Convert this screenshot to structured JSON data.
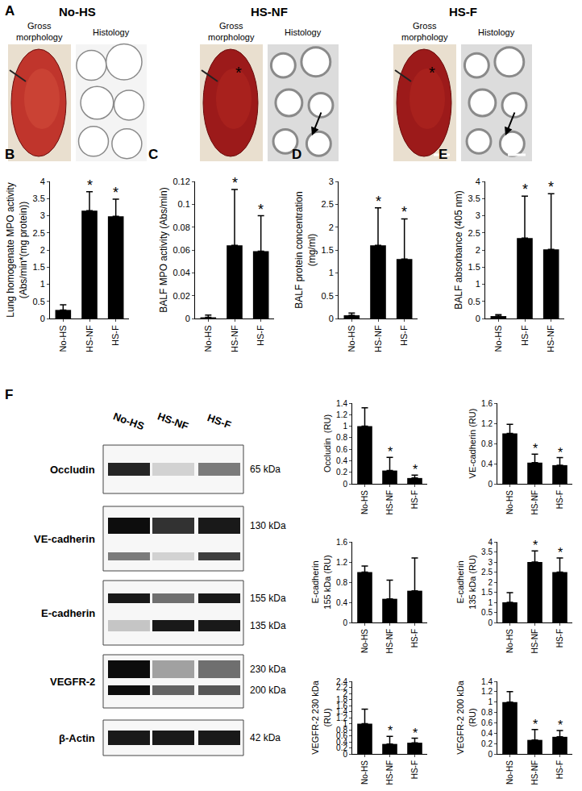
{
  "panel_a": {
    "label": "A",
    "groups": [
      {
        "title": "No-HS",
        "gross": "Gross\nmorphology",
        "histology": "Histology"
      },
      {
        "title": "HS-NF",
        "gross": "Gross\nmorphology",
        "histology": "Histology",
        "gross_mark": "*"
      },
      {
        "title": "HS-F",
        "gross": "Gross\nmorphology",
        "histology": "Histology",
        "gross_mark": "*"
      }
    ]
  },
  "western_blot": {
    "label": "F",
    "lanes": [
      "No-HS",
      "HS-NF",
      "HS-F"
    ],
    "rows": [
      {
        "name": "Occludin",
        "bands": [
          "65 kDa"
        ]
      },
      {
        "name": "VE-cadherin",
        "bands": [
          "130 kDa"
        ]
      },
      {
        "name": "E-cadherin",
        "bands": [
          "155 kDa",
          "135 kDa"
        ]
      },
      {
        "name": "VEGFR-2",
        "bands": [
          "230 kDa",
          "200 kDa"
        ]
      },
      {
        "name": "β-Actin",
        "bands": [
          "42 kDa"
        ]
      }
    ]
  },
  "chart_data": [
    {
      "type": "bar",
      "panel_label": "B",
      "ylabel": "Lung homogenate MPO activity\n(Abs/min*(mg protein))",
      "categories": [
        "No-HS",
        "HS-NF",
        "HS-F"
      ],
      "values": [
        0.25,
        3.15,
        2.98
      ],
      "errors": [
        0.15,
        0.55,
        0.5
      ],
      "color": "#000000",
      "ylim": [
        0,
        4
      ],
      "yticks": [
        0,
        0.5,
        1,
        1.5,
        2,
        2.5,
        3,
        3.5,
        4
      ],
      "grid": false,
      "annotations": [
        {
          "category": "HS-NF",
          "text": "*"
        },
        {
          "category": "HS-F",
          "text": "*"
        }
      ]
    },
    {
      "type": "bar",
      "panel_label": "C",
      "ylabel": "BALF MPO activity (Abs/min)",
      "categories": [
        "No-HS",
        "HS-NF",
        "HS-F"
      ],
      "values": [
        0.001,
        0.064,
        0.059
      ],
      "errors": [
        0.002,
        0.049,
        0.031
      ],
      "color": "#000000",
      "ylim": [
        0,
        0.12
      ],
      "yticks": [
        0,
        0.02,
        0.04,
        0.06,
        0.08,
        0.1,
        0.12
      ],
      "grid": false,
      "annotations": [
        {
          "category": "HS-NF",
          "text": "*"
        },
        {
          "category": "HS-F",
          "text": "*"
        }
      ]
    },
    {
      "type": "bar",
      "panel_label": "D",
      "ylabel": "BALF protein concentration\n(mg/ml)",
      "categories": [
        "No-HS",
        "HS-NF",
        "HS-F"
      ],
      "values": [
        0.07,
        1.6,
        1.3
      ],
      "errors": [
        0.05,
        0.82,
        0.88
      ],
      "color": "#000000",
      "ylim": [
        0,
        3
      ],
      "yticks": [
        0,
        0.5,
        1,
        1.5,
        2,
        2.5,
        3
      ],
      "grid": false,
      "annotations": [
        {
          "category": "HS-NF",
          "text": "*"
        },
        {
          "category": "HS-F",
          "text": "*"
        }
      ]
    },
    {
      "type": "bar",
      "panel_label": "E",
      "ylabel": "BALF absorbance (405 nm)",
      "categories": [
        "No-HS",
        "HS-F",
        "HS-NF"
      ],
      "values": [
        0.07,
        2.35,
        2.02
      ],
      "errors": [
        0.04,
        1.22,
        1.62
      ],
      "color": "#000000",
      "ylim": [
        0,
        4
      ],
      "yticks": [
        0,
        0.5,
        1,
        1.5,
        2,
        2.5,
        3,
        3.5,
        4
      ],
      "grid": false,
      "annotations": [
        {
          "category": "HS-F",
          "text": "*"
        },
        {
          "category": "HS-NF",
          "text": "*"
        }
      ]
    },
    {
      "type": "bar",
      "ylabel": "Occludin  (RU)",
      "categories": [
        "No-HS",
        "HS-NF",
        "HS-F"
      ],
      "values": [
        1.0,
        0.23,
        0.1
      ],
      "errors": [
        0.32,
        0.23,
        0.05
      ],
      "color": "#000000",
      "ylim": [
        0,
        1.4
      ],
      "yticks": [
        0,
        0.2,
        0.4,
        0.6,
        0.8,
        1,
        1.2,
        1.4
      ],
      "grid": false,
      "annotations": [
        {
          "category": "HS-NF",
          "text": "*"
        },
        {
          "category": "HS-F",
          "text": "*"
        }
      ]
    },
    {
      "type": "bar",
      "ylabel": "VE-cadherin (RU)",
      "categories": [
        "No-HS",
        "HS-NF",
        "HS-F"
      ],
      "values": [
        1.0,
        0.42,
        0.37
      ],
      "errors": [
        0.18,
        0.17,
        0.15
      ],
      "color": "#000000",
      "ylim": [
        0,
        1.6
      ],
      "yticks": [
        0,
        0.4,
        0.8,
        1.2,
        1.6
      ],
      "grid": false,
      "annotations": [
        {
          "category": "HS-NF",
          "text": "*"
        },
        {
          "category": "HS-F",
          "text": "*"
        }
      ]
    },
    {
      "type": "bar",
      "ylabel": "E-cadherin\n155 kDa (RU)",
      "categories": [
        "No-HS",
        "HS-NF",
        "HS-F"
      ],
      "values": [
        1.0,
        0.47,
        0.63
      ],
      "errors": [
        0.12,
        0.37,
        0.65
      ],
      "color": "#000000",
      "ylim": [
        0,
        1.6
      ],
      "yticks": [
        0,
        0.4,
        0.8,
        1.2,
        1.6
      ],
      "grid": false
    },
    {
      "type": "bar",
      "ylabel": "E-cadherin\n135 kDa (RU)",
      "categories": [
        "No-HS",
        "HS-NF",
        "HS-F"
      ],
      "values": [
        1.0,
        3.0,
        2.5
      ],
      "errors": [
        0.48,
        0.55,
        0.7
      ],
      "color": "#000000",
      "ylim": [
        0,
        4
      ],
      "yticks": [
        0,
        0.5,
        1,
        1.5,
        2,
        2.5,
        3,
        3.5,
        4
      ],
      "grid": false,
      "annotations": [
        {
          "category": "HS-NF",
          "text": "*"
        },
        {
          "category": "HS-F",
          "text": "*"
        }
      ]
    },
    {
      "type": "bar",
      "ylabel": "VEGFR-2 230 kDa\n(RU)",
      "categories": [
        "No-HS",
        "HS-NF",
        "HS-F"
      ],
      "values": [
        1.0,
        0.33,
        0.37
      ],
      "errors": [
        0.48,
        0.25,
        0.15
      ],
      "color": "#000000",
      "ylim": [
        0,
        2.4
      ],
      "yticks": [
        0,
        0.2,
        0.4,
        0.6,
        0.8,
        1,
        1.2,
        1.4,
        1.6,
        1.8,
        2,
        2.2,
        2.4
      ],
      "grid": false,
      "annotations": [
        {
          "category": "HS-NF",
          "text": "*"
        },
        {
          "category": "HS-F",
          "text": "*"
        }
      ]
    },
    {
      "type": "bar",
      "ylabel": "VEGFR-2 200 kDa\n(RU)",
      "categories": [
        "No-HS",
        "HS-NF",
        "HS-F"
      ],
      "values": [
        1.0,
        0.27,
        0.33
      ],
      "errors": [
        0.2,
        0.2,
        0.12
      ],
      "color": "#000000",
      "ylim": [
        0,
        1.4
      ],
      "yticks": [
        0,
        0.2,
        0.4,
        0.6,
        0.8,
        1,
        1.2,
        1.4
      ],
      "grid": false,
      "annotations": [
        {
          "category": "HS-NF",
          "text": "*"
        },
        {
          "category": "HS-F",
          "text": "*"
        }
      ]
    }
  ]
}
